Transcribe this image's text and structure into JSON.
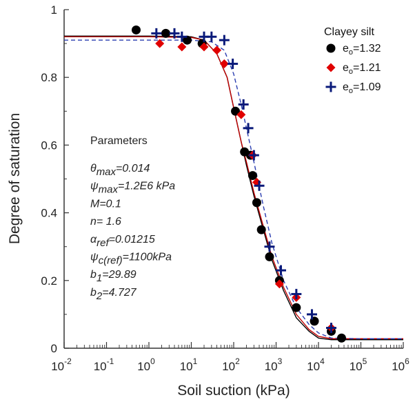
{
  "chart_data": {
    "type": "scatter",
    "xlabel": "Soil suction (kPa)",
    "ylabel": "Degree of saturation",
    "xscale": "log",
    "xlim": [
      0.01,
      1000000
    ],
    "ylim": [
      0,
      1
    ],
    "x_tick_labels": [
      {
        "base": "10",
        "exp": "-2",
        "value": 0.01
      },
      {
        "base": "10",
        "exp": "-1",
        "value": 0.1
      },
      {
        "base": "10",
        "exp": "0",
        "value": 1
      },
      {
        "base": "10",
        "exp": "1",
        "value": 10
      },
      {
        "base": "10",
        "exp": "2",
        "value": 100
      },
      {
        "base": "10",
        "exp": "3",
        "value": 1000
      },
      {
        "base": "10",
        "exp": "4",
        "value": 10000
      },
      {
        "base": "10",
        "exp": "5",
        "value": 100000
      },
      {
        "base": "10",
        "exp": "6",
        "value": 1000000
      }
    ],
    "y_tick_labels": [
      "0",
      "0.2",
      "0.4",
      "0.6",
      "0.8",
      "1"
    ],
    "y_ticks": [
      0,
      0.2,
      0.4,
      0.6,
      0.8,
      1
    ],
    "legend": {
      "title": "Clayey silt",
      "placement": "top-right",
      "entries": [
        {
          "prefix": "e",
          "sub": "o",
          "suffix": "=1.32"
        },
        {
          "prefix": "e",
          "sub": "o",
          "suffix": "=1.21"
        },
        {
          "prefix": "e",
          "sub": "o",
          "suffix": "=1.09"
        }
      ]
    },
    "series": [
      {
        "marker": "circle",
        "color": "#000000",
        "points": [
          [
            0.5,
            0.94
          ],
          [
            2.5,
            0.93
          ],
          [
            8,
            0.91
          ],
          [
            18,
            0.9
          ],
          [
            110,
            0.7
          ],
          [
            180,
            0.58
          ],
          [
            250,
            0.57
          ],
          [
            280,
            0.51
          ],
          [
            350,
            0.43
          ],
          [
            450,
            0.35
          ],
          [
            700,
            0.27
          ],
          [
            1200,
            0.2
          ],
          [
            3000,
            0.12
          ],
          [
            8000,
            0.08
          ],
          [
            20000,
            0.05
          ],
          [
            35000,
            0.03
          ]
        ]
      },
      {
        "marker": "diamond",
        "color": "#e00000",
        "points": [
          [
            1.8,
            0.9
          ],
          [
            6,
            0.89
          ],
          [
            20,
            0.89
          ],
          [
            40,
            0.88
          ],
          [
            60,
            0.84
          ],
          [
            150,
            0.69
          ],
          [
            280,
            0.57
          ],
          [
            350,
            0.49
          ],
          [
            1200,
            0.19
          ],
          [
            3000,
            0.15
          ],
          [
            20000,
            0.06
          ]
        ]
      },
      {
        "marker": "plus",
        "color": "#0a1a7a",
        "points": [
          [
            1.5,
            0.93
          ],
          [
            4,
            0.93
          ],
          [
            6,
            0.92
          ],
          [
            20,
            0.92
          ],
          [
            30,
            0.92
          ],
          [
            60,
            0.91
          ],
          [
            95,
            0.84
          ],
          [
            170,
            0.72
          ],
          [
            220,
            0.65
          ],
          [
            300,
            0.57
          ],
          [
            400,
            0.48
          ],
          [
            700,
            0.3
          ],
          [
            1300,
            0.23
          ],
          [
            3000,
            0.16
          ],
          [
            7000,
            0.1
          ],
          [
            20000,
            0.06
          ]
        ]
      }
    ],
    "fit_curves": [
      {
        "color": "#000000",
        "style": "solid",
        "points": [
          [
            0.01,
            0.922
          ],
          [
            1,
            0.922
          ],
          [
            10,
            0.92
          ],
          [
            20,
            0.91
          ],
          [
            40,
            0.87
          ],
          [
            70,
            0.8
          ],
          [
            100,
            0.71
          ],
          [
            150,
            0.61
          ],
          [
            200,
            0.54
          ],
          [
            300,
            0.45
          ],
          [
            500,
            0.35
          ],
          [
            800,
            0.26
          ],
          [
            1500,
            0.17
          ],
          [
            3000,
            0.09
          ],
          [
            6000,
            0.05
          ],
          [
            10000,
            0.03
          ],
          [
            20000,
            0.025
          ],
          [
            100000,
            0.025
          ],
          [
            1000000,
            0.025
          ]
        ]
      },
      {
        "color": "#c00000",
        "style": "solid",
        "points": [
          [
            0.01,
            0.92
          ],
          [
            1,
            0.92
          ],
          [
            10,
            0.918
          ],
          [
            20,
            0.91
          ],
          [
            40,
            0.87
          ],
          [
            70,
            0.8
          ],
          [
            100,
            0.71
          ],
          [
            150,
            0.61
          ],
          [
            200,
            0.55
          ],
          [
            300,
            0.46
          ],
          [
            500,
            0.36
          ],
          [
            800,
            0.27
          ],
          [
            1500,
            0.18
          ],
          [
            3000,
            0.1
          ],
          [
            6000,
            0.055
          ],
          [
            10000,
            0.035
          ],
          [
            20000,
            0.028
          ],
          [
            100000,
            0.028
          ],
          [
            1000000,
            0.028
          ]
        ]
      },
      {
        "color": "#2a3db0",
        "style": "dashed",
        "points": [
          [
            0.01,
            0.91
          ],
          [
            1,
            0.91
          ],
          [
            10,
            0.91
          ],
          [
            30,
            0.905
          ],
          [
            60,
            0.88
          ],
          [
            100,
            0.81
          ],
          [
            150,
            0.72
          ],
          [
            200,
            0.65
          ],
          [
            300,
            0.55
          ],
          [
            500,
            0.42
          ],
          [
            800,
            0.31
          ],
          [
            1500,
            0.2
          ],
          [
            3000,
            0.12
          ],
          [
            6000,
            0.07
          ],
          [
            10000,
            0.045
          ],
          [
            20000,
            0.03
          ],
          [
            100000,
            0.028
          ],
          [
            1000000,
            0.028
          ]
        ]
      }
    ],
    "annotations": {
      "heading": "Parameters",
      "lines": [
        {
          "sym": "θ",
          "sub": "max",
          "text": "=0.014"
        },
        {
          "sym": "ψ",
          "sub": "max",
          "text": "=1.2E6 kPa"
        },
        {
          "sym": "",
          "sub": "",
          "text": "M=0.1"
        },
        {
          "sym": "",
          "sub": "",
          "text": "n= 1.6"
        },
        {
          "sym": "α",
          "sub": "ref",
          "text": "=0.01215"
        },
        {
          "sym": "ψ",
          "sub": "c(ref)",
          "text": "=1100kPa"
        },
        {
          "sym": "b",
          "sub": "1",
          "text": "=29.89"
        },
        {
          "sym": "b",
          "sub": "2",
          "text": "=4.727"
        }
      ]
    }
  }
}
